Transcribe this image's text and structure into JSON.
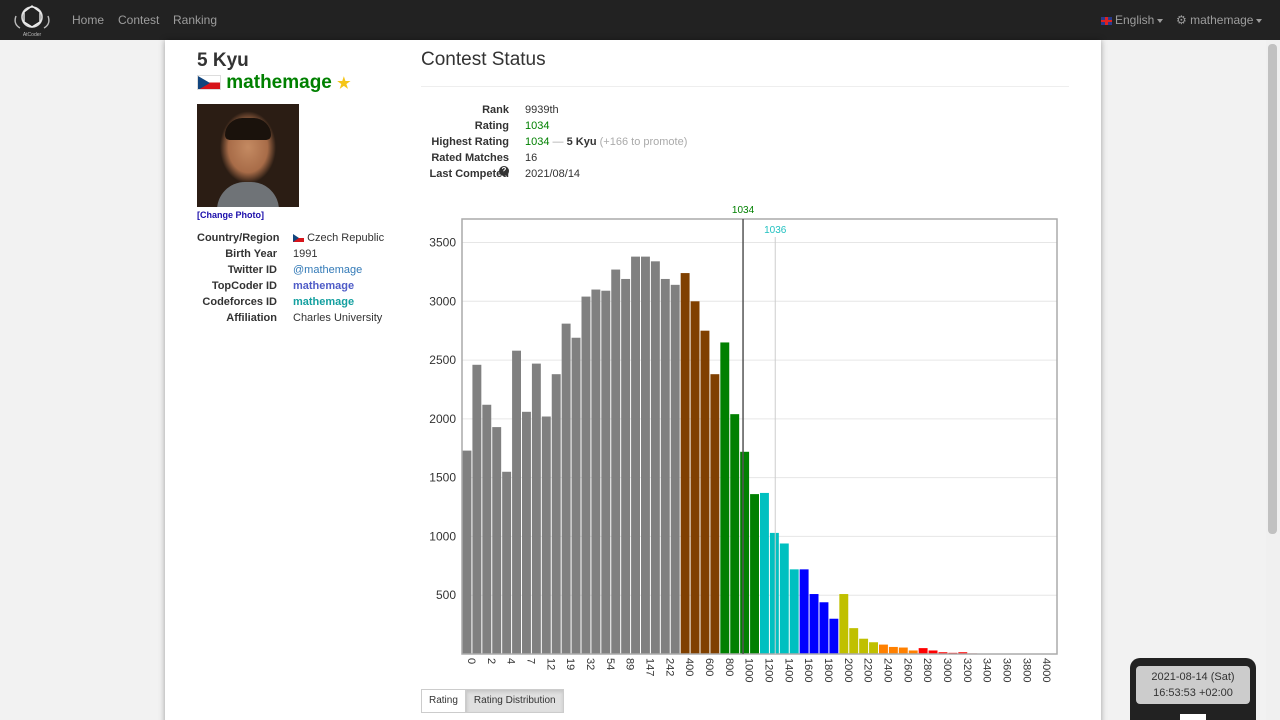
{
  "nav": {
    "logo_label": "AtCoder",
    "links": [
      "Home",
      "Contest",
      "Ranking"
    ],
    "language": "English",
    "user": "mathemage"
  },
  "profile": {
    "kyu": "5 Kyu",
    "username": "mathemage",
    "change_photo": "[Change Photo]",
    "fields": [
      {
        "label": "Country/Region",
        "value": "Czech Republic"
      },
      {
        "label": "Birth Year",
        "value": "1991"
      },
      {
        "label": "Twitter ID",
        "value": "@mathemage"
      },
      {
        "label": "TopCoder ID",
        "value": "mathemage"
      },
      {
        "label": "Codeforces ID",
        "value": "mathemage"
      },
      {
        "label": "Affiliation",
        "value": "Charles University"
      }
    ]
  },
  "status": {
    "title": "Contest Status",
    "rank_label": "Rank",
    "rank": "9939th",
    "rating_label": "Rating",
    "rating": "1034",
    "highest_label": "Highest Rating",
    "highest": "1034",
    "highest_sep": "—",
    "highest_kyu": "5 Kyu",
    "highest_note": "(+166 to promote)",
    "matches_label": "Rated Matches",
    "matches": "16",
    "last_label": "Last Competed",
    "last": "2021/08/14"
  },
  "chart_data": {
    "type": "bar",
    "title": "",
    "xlabel": "",
    "ylabel": "",
    "ylim": [
      0,
      3700
    ],
    "y_ticks": [
      500,
      1000,
      1500,
      2000,
      2500,
      3000,
      3500
    ],
    "x_tick_labels": [
      "0",
      "2",
      "4",
      "7",
      "12",
      "19",
      "32",
      "54",
      "89",
      "147",
      "242",
      "400",
      "600",
      "800",
      "1000",
      "1200",
      "1400",
      "1600",
      "1800",
      "2000",
      "2200",
      "2400",
      "2600",
      "2800",
      "3000",
      "3200",
      "3400",
      "3600",
      "3800",
      "4000"
    ],
    "values": [
      1730,
      2460,
      2120,
      1930,
      1550,
      2580,
      2060,
      2470,
      2020,
      2380,
      2810,
      2690,
      3040,
      3100,
      3090,
      3270,
      3190,
      3380,
      3380,
      3340,
      3190,
      3140,
      3240,
      3000,
      2750,
      2380,
      2650,
      2040,
      1720,
      1360,
      1370,
      1030,
      940,
      720,
      720,
      510,
      440,
      300,
      510,
      220,
      130,
      100,
      80,
      60,
      55,
      30,
      50,
      30,
      15,
      10,
      15,
      5,
      3,
      2,
      2,
      1,
      1,
      1,
      0,
      0
    ],
    "colors": [
      "#808080",
      "#808080",
      "#808080",
      "#808080",
      "#808080",
      "#808080",
      "#808080",
      "#808080",
      "#808080",
      "#808080",
      "#808080",
      "#808080",
      "#808080",
      "#808080",
      "#808080",
      "#808080",
      "#808080",
      "#808080",
      "#808080",
      "#808080",
      "#808080",
      "#808080",
      "#804000",
      "#804000",
      "#804000",
      "#804000",
      "#008000",
      "#008000",
      "#008000",
      "#008000",
      "#00c0c0",
      "#00c0c0",
      "#00c0c0",
      "#00c0c0",
      "#0000ff",
      "#0000ff",
      "#0000ff",
      "#0000ff",
      "#c0c000",
      "#c0c000",
      "#c0c000",
      "#c0c000",
      "#ff8000",
      "#ff8000",
      "#ff8000",
      "#ff8000",
      "#ff0000",
      "#ff0000",
      "#ff0000",
      "#ff0000",
      "#ff0000",
      "#ff0000",
      "#ff0000",
      "#ff0000",
      "#ff0000",
      "#ff0000",
      "#ff0000",
      "#ff0000",
      "#ff0000",
      "#ff0000"
    ],
    "markers": [
      {
        "label": "1034",
        "value": 1034,
        "color": "#008000",
        "line": "#555555"
      },
      {
        "label": "1036",
        "value": 1036,
        "color": "#20c0c0",
        "line": "#cccccc"
      }
    ]
  },
  "tabs": {
    "rating": "Rating",
    "distribution": "Rating Distribution"
  },
  "clock": {
    "date": "2021-08-14 (Sat)",
    "time": "16:53:53 +02:00"
  }
}
